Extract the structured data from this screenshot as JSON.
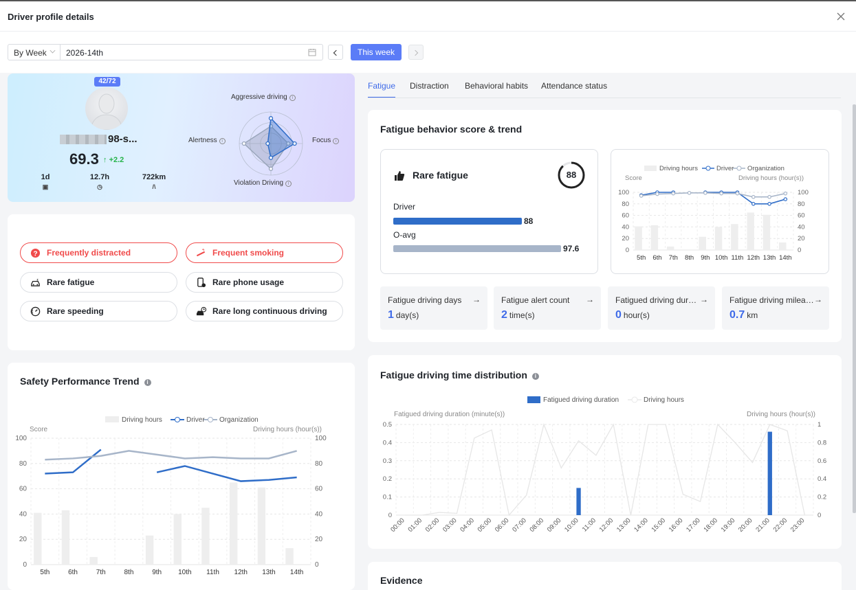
{
  "header": {
    "title": "Driver profile details"
  },
  "toolbar": {
    "period": "By Week",
    "date": "2026-14th",
    "this_week": "This week"
  },
  "profile": {
    "rank": "42/72",
    "name_suffix": "98-s...",
    "score": "69.3",
    "delta": "+2.2",
    "stats": [
      {
        "value": "1d",
        "icon": "calendar-icon"
      },
      {
        "value": "12.7h",
        "icon": "clock-icon"
      },
      {
        "value": "722km",
        "icon": "road-icon"
      }
    ],
    "radar": {
      "top": "Aggressive driving",
      "left": "Alertness",
      "right": "Focus",
      "bottom": "Violation Driving",
      "driver_values": [
        0.8,
        0.1,
        0.75,
        0.45
      ],
      "org_values": [
        0.55,
        0.85,
        0.55,
        0.8
      ]
    }
  },
  "habits": [
    {
      "label": "Frequently distracted",
      "warn": true,
      "icon": "distracted-icon"
    },
    {
      "label": "Frequent smoking",
      "warn": true,
      "icon": "smoking-icon"
    },
    {
      "label": "Rare fatigue",
      "warn": false,
      "icon": "car-fatigue-icon"
    },
    {
      "label": "Rare phone usage",
      "warn": false,
      "icon": "phone-icon"
    },
    {
      "label": "Rare speeding",
      "warn": false,
      "icon": "speedometer-icon"
    },
    {
      "label": "Rare long continuous driving",
      "warn": false,
      "icon": "car-timer-icon"
    }
  ],
  "trend": {
    "title": "Safety Performance Trend",
    "legend": [
      "Driving hours",
      "Driver",
      "Organization"
    ],
    "left_axis": "Score",
    "right_axis": "Driving hours (hour(s))"
  },
  "tabs": [
    "Fatigue",
    "Distraction",
    "Behavioral habits",
    "Attendance status"
  ],
  "fatigue": {
    "title": "Fatigue behavior score & trend",
    "rare_label": "Rare fatigue",
    "score": "88",
    "driver_label": "Driver",
    "driver_value": "88",
    "avg_label": "O-avg",
    "avg_value": "97.6",
    "kpis": [
      {
        "title": "Fatigue driving days",
        "value": "1",
        "unit": "day(s)"
      },
      {
        "title": "Fatigue alert count",
        "value": "2",
        "unit": "time(s)"
      },
      {
        "title": "Fatigued driving durat...",
        "value": "0",
        "unit": "hour(s)"
      },
      {
        "title": "Fatigue driving mileage",
        "value": "0.7",
        "unit": "km"
      }
    ]
  },
  "distribution": {
    "title": "Fatigue driving time distribution",
    "legend": [
      "Fatigued driving duration",
      "Driving hours"
    ],
    "left_axis": "Fatigued driving duration (minute(s))",
    "right_axis": "Driving hours (hour(s))"
  },
  "evidence": {
    "title": "Evidence"
  },
  "chart_data": [
    {
      "type": "line",
      "title": "Safety Performance Trend",
      "categories": [
        "5th",
        "6th",
        "7th",
        "8th",
        "9th",
        "10th",
        "11th",
        "12th",
        "13th",
        "14th"
      ],
      "series": [
        {
          "name": "Driving hours",
          "type": "bar",
          "axis": "right",
          "values": [
            41,
            43,
            6,
            0,
            23,
            40,
            45,
            65,
            61,
            13
          ]
        },
        {
          "name": "Driver",
          "values": [
            72,
            73,
            91,
            null,
            73,
            78,
            72,
            66,
            67,
            69
          ]
        },
        {
          "name": "Organization",
          "values": [
            83,
            84,
            86,
            90,
            87,
            84,
            85,
            84,
            84,
            90
          ]
        }
      ],
      "ylim": [
        0,
        100
      ],
      "y2lim": [
        0,
        100
      ],
      "yticks": [
        0,
        20,
        40,
        60,
        80,
        100
      ],
      "ylabel": "Score",
      "y2label": "Driving hours (hour(s))",
      "colors": {
        "driver": "#2f6dc8",
        "org": "#a7b5c9",
        "bars": "#eeeeee"
      }
    },
    {
      "type": "line",
      "categories": [
        "5th",
        "6th",
        "7th",
        "8th",
        "9th",
        "10th",
        "11th",
        "12th",
        "13th",
        "14th"
      ],
      "series": [
        {
          "name": "Driving hours",
          "type": "bar",
          "axis": "right",
          "values": [
            41,
            43,
            6,
            0,
            23,
            40,
            45,
            65,
            61,
            13
          ]
        },
        {
          "name": "Driver",
          "values": [
            95,
            100,
            100,
            null,
            100,
            100,
            100,
            80,
            80,
            88
          ]
        },
        {
          "name": "Organization",
          "values": [
            94,
            97,
            98,
            99,
            99,
            98,
            98,
            92,
            92,
            98
          ]
        }
      ],
      "ylim": [
        0,
        100
      ],
      "y2lim": [
        0,
        100
      ],
      "yticks": [
        0,
        20,
        40,
        60,
        80,
        100
      ],
      "ylabel": "Score",
      "y2label": "Driving hours (hour(s))"
    },
    {
      "type": "bar",
      "categories": [
        "00:00",
        "01:00",
        "02:00",
        "03:00",
        "04:00",
        "05:00",
        "06:00",
        "07:00",
        "08:00",
        "09:00",
        "10:00",
        "11:00",
        "12:00",
        "13:00",
        "14:00",
        "15:00",
        "16:00",
        "17:00",
        "18:00",
        "19:00",
        "20:00",
        "21:00",
        "22:00",
        "23:00"
      ],
      "series": [
        {
          "name": "Fatigued driving duration",
          "values": [
            0,
            0,
            0,
            0,
            0,
            0,
            0,
            0,
            0,
            0,
            0.15,
            0,
            0,
            0,
            0,
            0,
            0,
            0,
            0,
            0,
            0,
            0.46,
            0,
            0
          ]
        },
        {
          "name": "Driving hours",
          "type": "line",
          "axis": "right",
          "values": [
            0,
            0,
            0.03,
            0.02,
            0.85,
            0.94,
            0,
            0.22,
            1,
            0.52,
            0.82,
            0.66,
            1,
            0,
            1,
            1,
            0.23,
            0.15,
            1,
            0.8,
            0.58,
            1,
            0.93,
            0
          ]
        }
      ],
      "ylim": [
        0,
        0.5
      ],
      "y2lim": [
        0,
        1
      ],
      "yticks": [
        0,
        0.1,
        0.2,
        0.3,
        0.4,
        0.5
      ],
      "y2ticks": [
        0,
        0.2,
        0.4,
        0.6,
        0.8,
        1
      ],
      "ylabel": "Fatigued driving duration (minute(s))",
      "y2label": "Driving hours (hour(s))"
    }
  ]
}
